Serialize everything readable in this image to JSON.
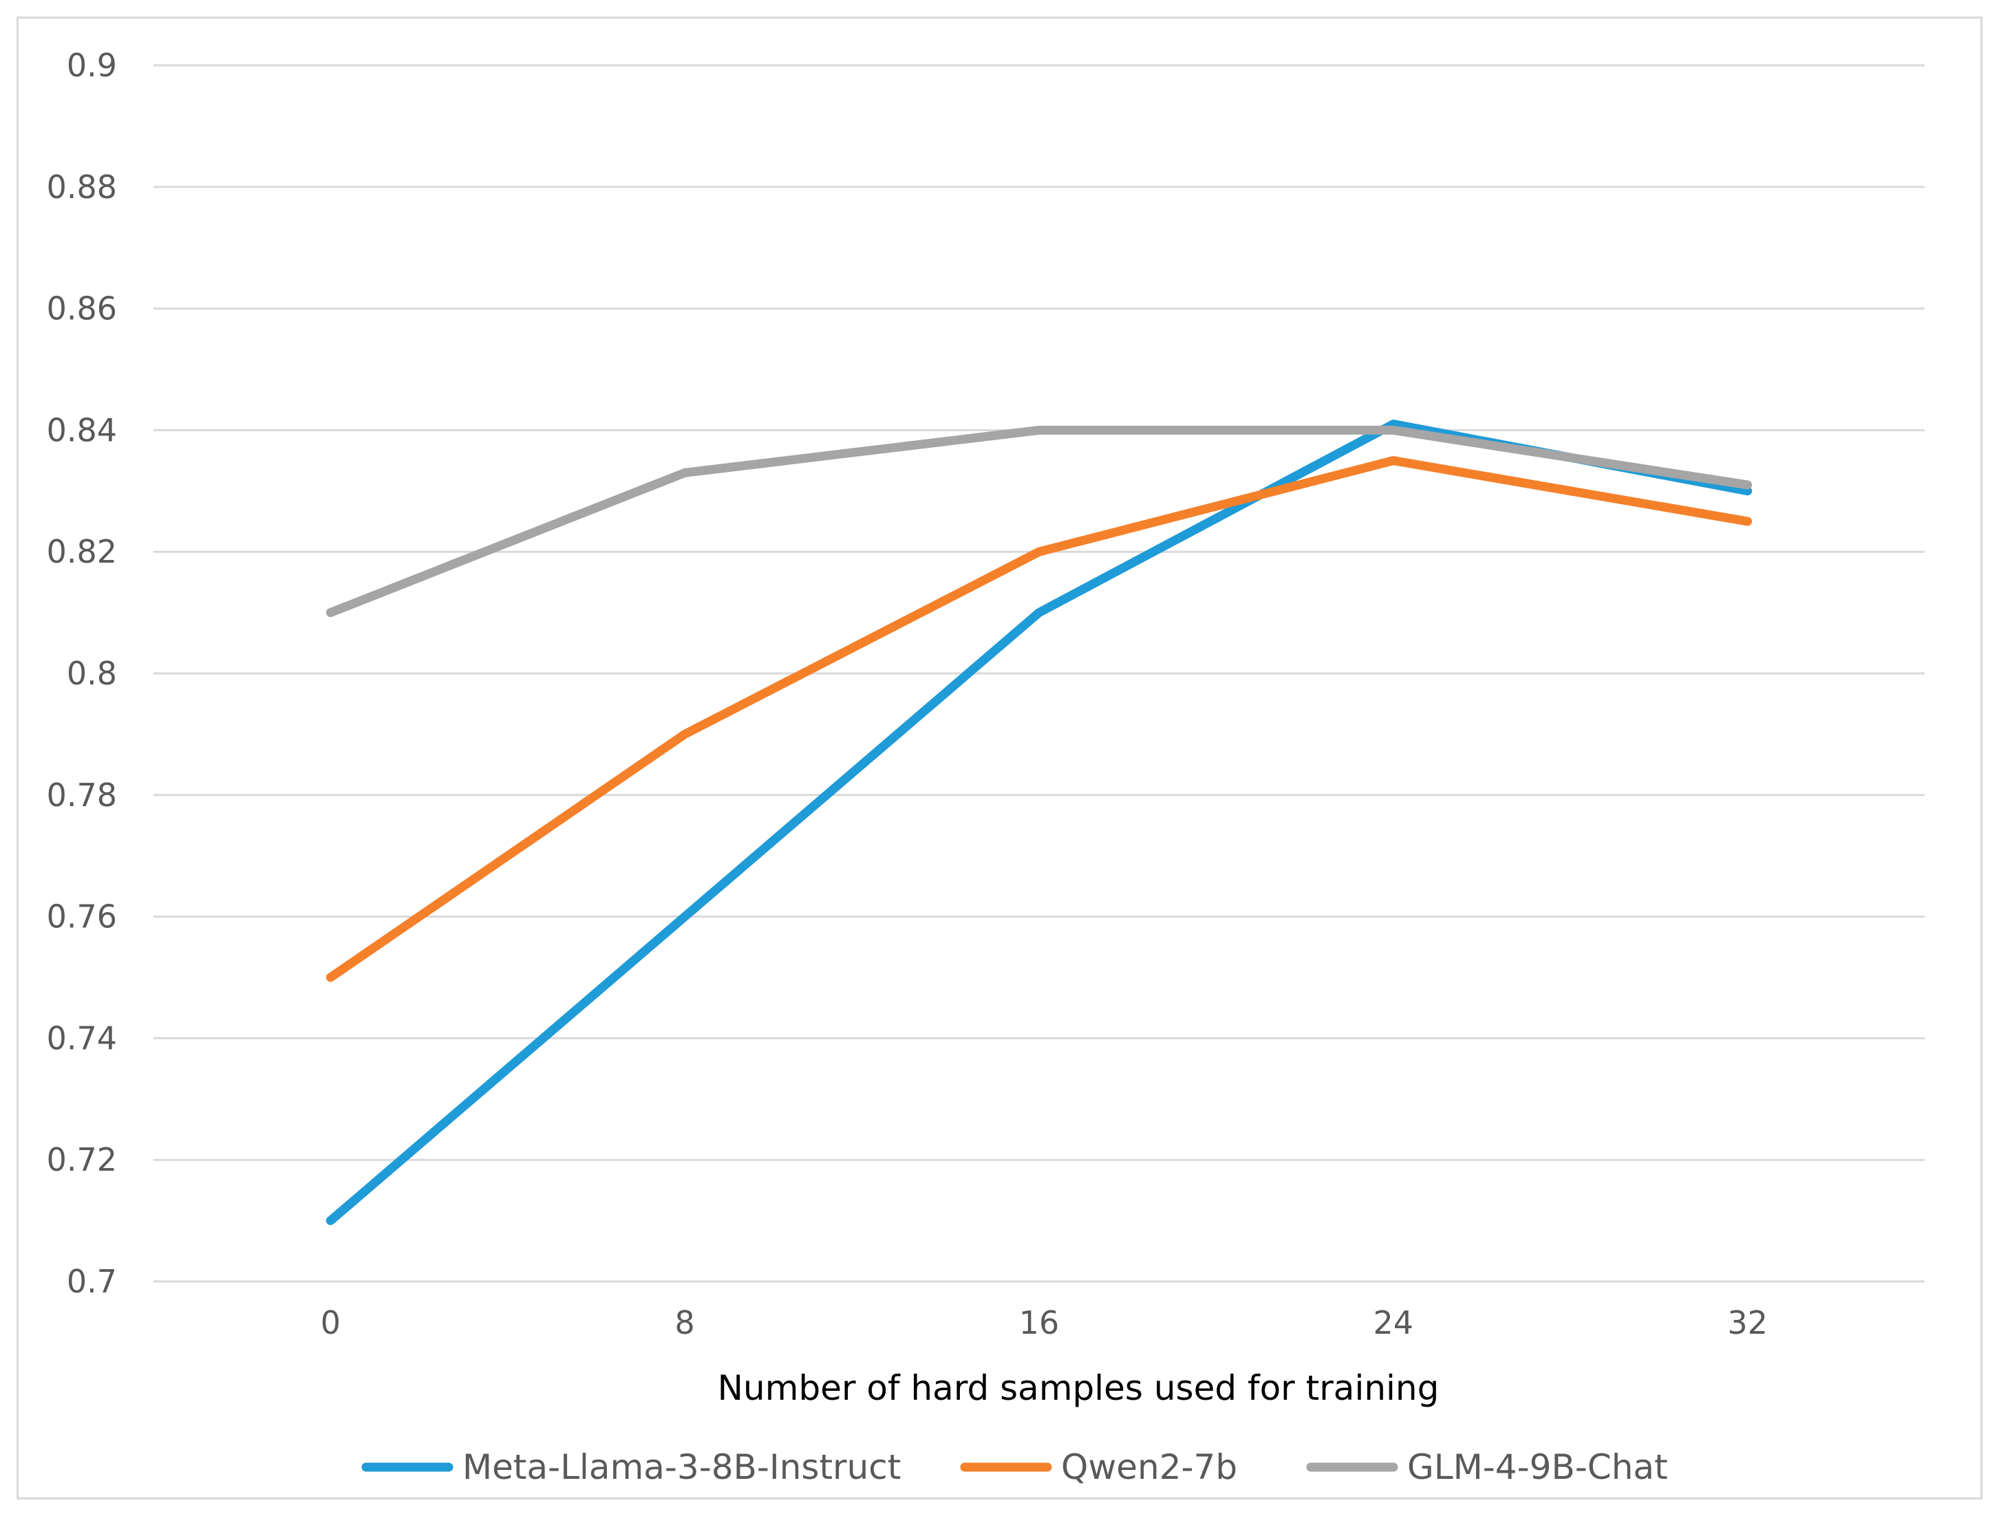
{
  "chart_data": {
    "type": "line",
    "title": "",
    "xlabel": "Number of hard samples used for training",
    "ylabel": "",
    "categories": [
      "0",
      "8",
      "16",
      "24",
      "32"
    ],
    "ylim": [
      0.7,
      0.9
    ],
    "yticks": [
      0.7,
      0.72,
      0.74,
      0.76,
      0.78,
      0.8,
      0.82,
      0.84,
      0.86,
      0.88,
      0.9
    ],
    "ytick_labels": [
      "0.7",
      "0.72",
      "0.74",
      "0.76",
      "0.78",
      "0.8",
      "0.82",
      "0.84",
      "0.86",
      "0.88",
      "0.9"
    ],
    "grid": true,
    "legend_position": "bottom",
    "series": [
      {
        "name": "Meta-Llama-3-8B-Instruct",
        "color": "#1f9bd7",
        "values": [
          0.71,
          0.76,
          0.81,
          0.841,
          0.83
        ]
      },
      {
        "name": "Qwen2-7b",
        "color": "#f5802a",
        "values": [
          0.75,
          0.79,
          0.82,
          0.835,
          0.825
        ]
      },
      {
        "name": "GLM-4-9B-Chat",
        "color": "#a5a5a5",
        "values": [
          0.81,
          0.833,
          0.84,
          0.84,
          0.831
        ]
      }
    ]
  }
}
